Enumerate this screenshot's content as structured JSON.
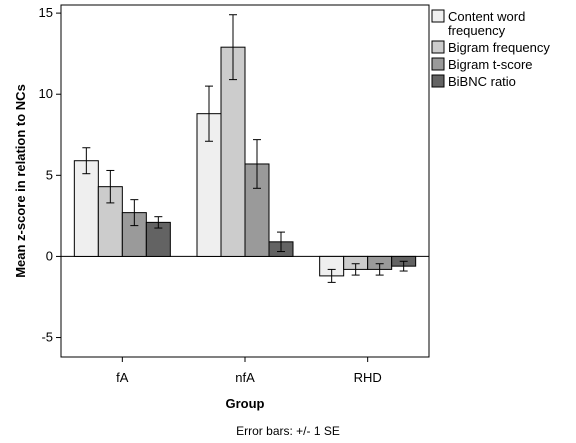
{
  "chart_data": {
    "type": "bar",
    "categories": [
      "fA",
      "nfA",
      "RHD"
    ],
    "series": [
      {
        "name_lines": [
          "Content word",
          "frequency"
        ],
        "values": [
          5.9,
          8.8,
          -1.2
        ],
        "errors": [
          0.8,
          1.7,
          0.4
        ],
        "color": "#efefef"
      },
      {
        "name_lines": [
          "Bigram frequency"
        ],
        "values": [
          4.3,
          12.9,
          -0.8
        ],
        "errors": [
          1.0,
          2.0,
          0.35
        ],
        "color": "#cccccc"
      },
      {
        "name_lines": [
          "Bigram t-score"
        ],
        "values": [
          2.7,
          5.7,
          -0.8
        ],
        "errors": [
          0.8,
          1.5,
          0.35
        ],
        "color": "#9a9a9a"
      },
      {
        "name_lines": [
          "BiBNC ratio"
        ],
        "values": [
          2.1,
          0.9,
          -0.6
        ],
        "errors": [
          0.35,
          0.6,
          0.3
        ],
        "color": "#636363"
      }
    ],
    "ylim": [
      -6.2,
      15.5
    ],
    "yticks": [
      -5,
      0,
      5,
      10,
      15
    ],
    "ylabel": "Mean z-score in relation to NCs",
    "xlabel": "Group",
    "footnote": "Error bars: +/- 1 SE",
    "legend_position": "top-right outside plot"
  }
}
